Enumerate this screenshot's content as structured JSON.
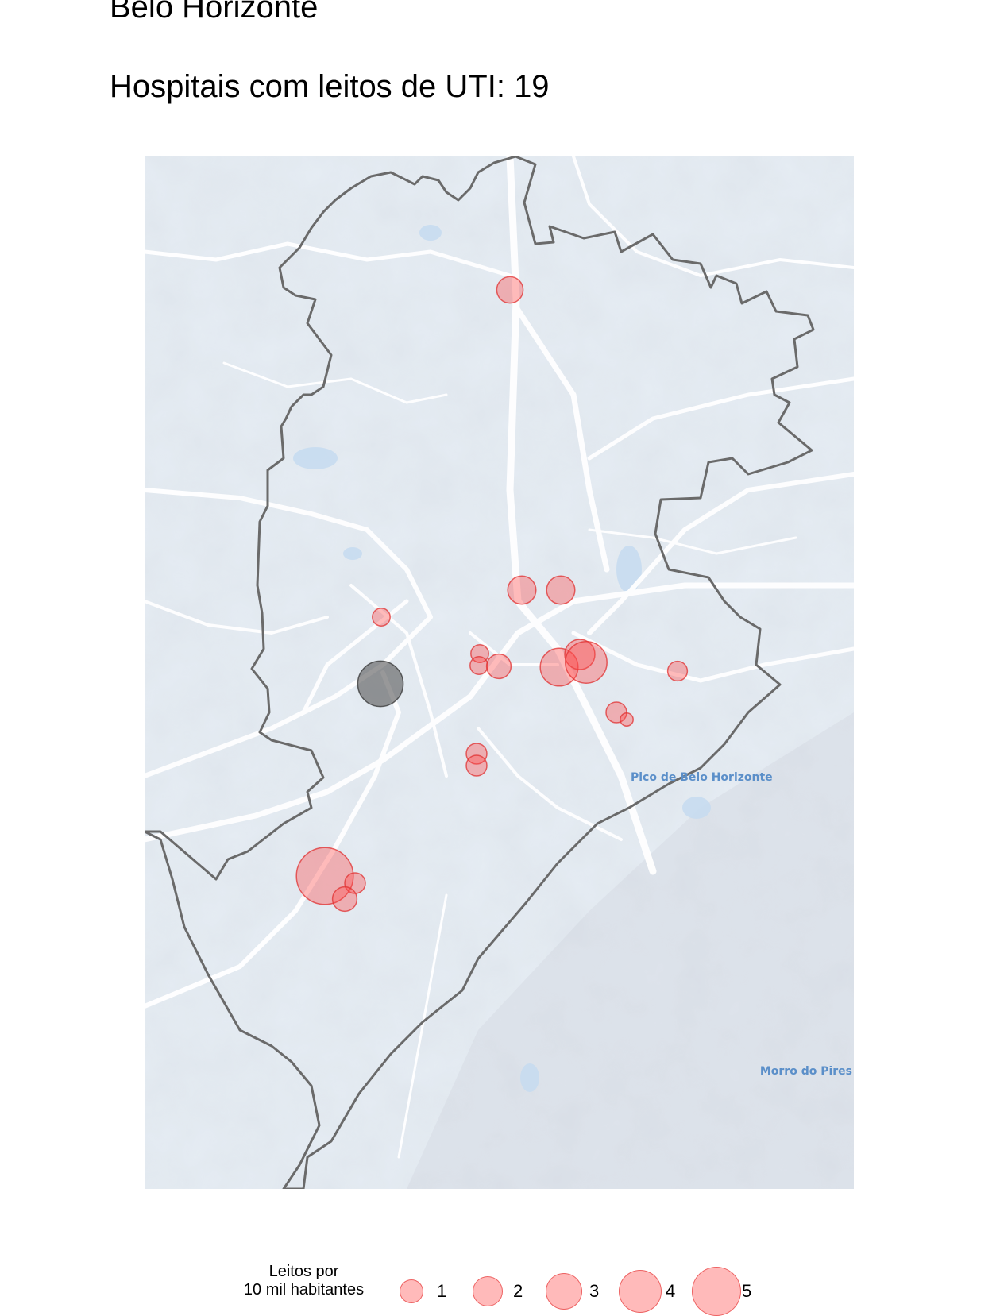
{
  "header": {
    "city": "Belo Horizonte",
    "subtitle": "Hospitais com leitos de UTI: 19"
  },
  "map": {
    "place_labels": [
      {
        "name": "Pico de Belo Horizonte"
      },
      {
        "name": "Morro do Pires"
      }
    ],
    "boundary_color": "#6a6a6a",
    "marker_color": "#ff4d4d",
    "highlight_marker_color": "#555555",
    "hospitals": [
      {
        "value": 1.6,
        "highlight": false
      },
      {
        "value": 1.8,
        "highlight": false
      },
      {
        "value": 1.8,
        "highlight": false
      },
      {
        "value": 0.7,
        "highlight": false
      },
      {
        "value": 0.7,
        "highlight": false
      },
      {
        "value": 0.7,
        "highlight": false
      },
      {
        "value": 1.4,
        "highlight": false
      },
      {
        "value": 2.8,
        "highlight": false
      },
      {
        "value": 2.0,
        "highlight": false
      },
      {
        "value": 3.2,
        "highlight": false
      },
      {
        "value": 0.9,
        "highlight": false
      },
      {
        "value": 1.0,
        "highlight": false
      },
      {
        "value": 0.2,
        "highlight": false
      },
      {
        "value": 1.0,
        "highlight": false
      },
      {
        "value": 1.0,
        "highlight": false
      },
      {
        "value": 4.8,
        "highlight": false
      },
      {
        "value": 1.0,
        "highlight": false
      },
      {
        "value": 1.4,
        "highlight": false
      },
      {
        "value": 3.6,
        "highlight": true
      }
    ]
  },
  "legend": {
    "title_line1": "Leitos por",
    "title_line2": "10 mil habitantes",
    "items": [
      {
        "label": "1",
        "value": 1
      },
      {
        "label": "2",
        "value": 2
      },
      {
        "label": "3",
        "value": 3
      },
      {
        "label": "4",
        "value": 4
      },
      {
        "label": "5",
        "value": 5
      }
    ]
  }
}
